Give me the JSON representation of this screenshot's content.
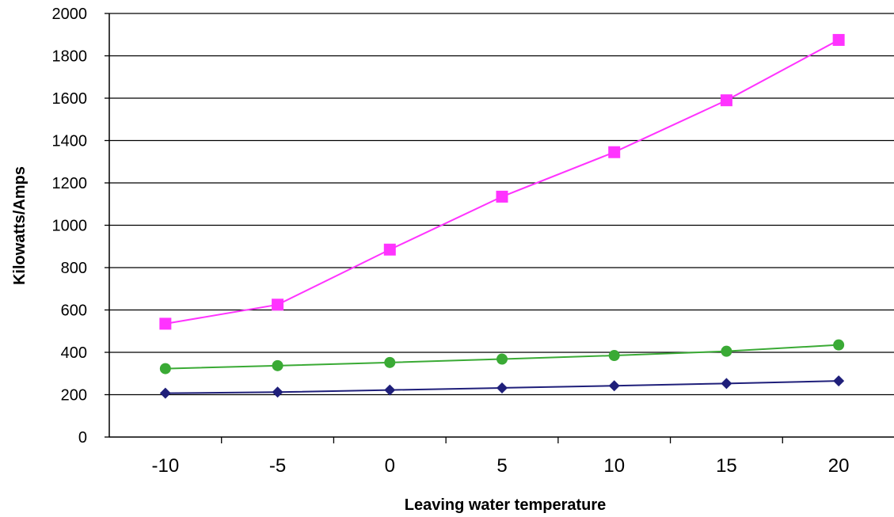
{
  "chart_data": {
    "type": "line",
    "title": "",
    "xlabel": "Leaving water temperature",
    "ylabel": "Kilowatts/Amps",
    "categories": [
      "-10",
      "-5",
      "0",
      "5",
      "10",
      "15",
      "20"
    ],
    "ylim": [
      0,
      2000
    ],
    "yticks": [
      "0",
      "200",
      "400",
      "600",
      "800",
      "1000",
      "1200",
      "1400",
      "1600",
      "1800",
      "2000"
    ],
    "grid": true,
    "legend": "none",
    "series": [
      {
        "color": "#ff33ff",
        "marker": "square",
        "values": [
          535,
          625,
          885,
          1135,
          1345,
          1590,
          1875
        ]
      },
      {
        "color": "#3aaa35",
        "marker": "circle",
        "values": [
          323,
          337,
          352,
          368,
          385,
          405,
          435
        ]
      },
      {
        "color": "#1f1f7a",
        "marker": "diamond",
        "values": [
          207,
          212,
          222,
          232,
          242,
          253,
          265
        ]
      }
    ]
  }
}
